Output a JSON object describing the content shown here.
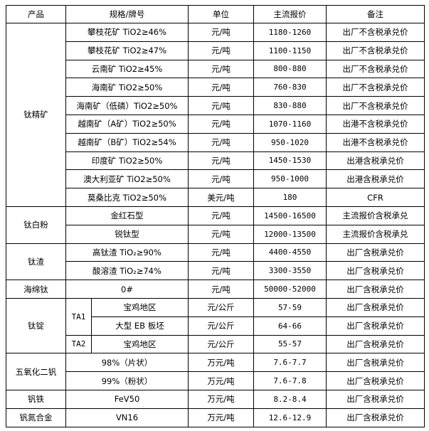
{
  "headers": [
    "产品",
    "规格/牌号",
    "单位",
    "主流报价",
    "备注"
  ],
  "groups": [
    {
      "product": "钛精矿",
      "items": [
        {
          "spec": "攀枝花矿 TiO2≥46%",
          "unit": "元/吨",
          "price": "1180-1260",
          "note": "出厂不含税承兑价"
        },
        {
          "spec": "攀枝花矿 TiO2≥47%",
          "unit": "元/吨",
          "price": "1100-1150",
          "note": "出厂不含税承兑价"
        },
        {
          "spec": "云南矿 TiO2≥45%",
          "unit": "元/吨",
          "price": "800-880",
          "note": "出厂不含税承兑价"
        },
        {
          "spec": "海南矿 TiO2≥50%",
          "unit": "元/吨",
          "price": "760-830",
          "note": "出厂不含税承兑价"
        },
        {
          "spec": "海南矿（低磷）TiO2≥50%",
          "unit": "元/吨",
          "price": "830-880",
          "note": "出厂不含税承兑价"
        },
        {
          "spec": "越南矿（A矿）TiO2≥50%",
          "unit": "元/吨",
          "price": "1070-1160",
          "note": "出港不含税承兑价"
        },
        {
          "spec": "越南矿（B矿）TiO2≥54%",
          "unit": "元/吨",
          "price": "950-1020",
          "note": "出港不含税承兑价"
        },
        {
          "spec": "印度矿 TiO2≥50%",
          "unit": "元/吨",
          "price": "1450-1530",
          "note": "出港含税承兑价"
        },
        {
          "spec": "澳大利亚矿 TiO2≥50%",
          "unit": "元/吨",
          "price": "950-1000",
          "note": "出港含税承兑价"
        },
        {
          "spec": "莫桑比克 TiO2≥50%",
          "unit": "美元/吨",
          "price": "180",
          "note": "CFR"
        }
      ]
    },
    {
      "product": "钛白粉",
      "items": [
        {
          "spec": "金红石型",
          "unit": "元/吨",
          "price": "14500-16500",
          "note": "主流报价含税承兑"
        },
        {
          "spec": "锐钛型",
          "unit": "元/吨",
          "price": "12000-13500",
          "note": "主流报价含税承兑"
        }
      ]
    },
    {
      "product": "钛渣",
      "items": [
        {
          "spec": "高钛渣 TiO₂≥90%",
          "unit": "元/吨",
          "price": "4400-4550",
          "note": "出厂含税承兑价"
        },
        {
          "spec": "酸溶渣 TiO₂≥74%",
          "unit": "元/吨",
          "price": "3300-3550",
          "note": "出厂含税承兑价"
        }
      ]
    },
    {
      "product": "海绵钛",
      "items": [
        {
          "spec": "0#",
          "unit": "元/吨",
          "price": "50000-52000",
          "note": "出厂含税承兑价"
        }
      ]
    },
    {
      "product": "钛锭",
      "items": [
        {
          "grade": "TA1",
          "spec": "宝鸡地区",
          "unit": "元/公斤",
          "price": "57-59",
          "note": "出厂含税承兑价"
        },
        {
          "grade": "TA1",
          "spec": "大型 EB 板坯",
          "unit": "元/公斤",
          "price": "64-66",
          "note": "出厂含税承兑价"
        },
        {
          "grade": "TA2",
          "spec": "宝鸡地区",
          "unit": "元/公斤",
          "price": "55-57",
          "note": "出厂含税承兑价"
        }
      ]
    },
    {
      "product": "五氧化二钒",
      "items": [
        {
          "spec": "98%（片状）",
          "unit": "万元/吨",
          "price": "7.6-7.7",
          "note": "出厂含税承兑价"
        },
        {
          "spec": "99%（粉状）",
          "unit": "万元/吨",
          "price": "7.6-7.8",
          "note": "出厂含税承兑价"
        }
      ]
    },
    {
      "product": "钒铁",
      "items": [
        {
          "spec": "FeV50",
          "unit": "万元/吨",
          "price": "8.2-8.4",
          "note": "出厂含税承兑价"
        }
      ]
    },
    {
      "product": "钒氮合金",
      "items": [
        {
          "spec": "VN16",
          "unit": "万元/吨",
          "price": "12.6-12.9",
          "note": "出厂含税承兑价"
        }
      ]
    }
  ]
}
